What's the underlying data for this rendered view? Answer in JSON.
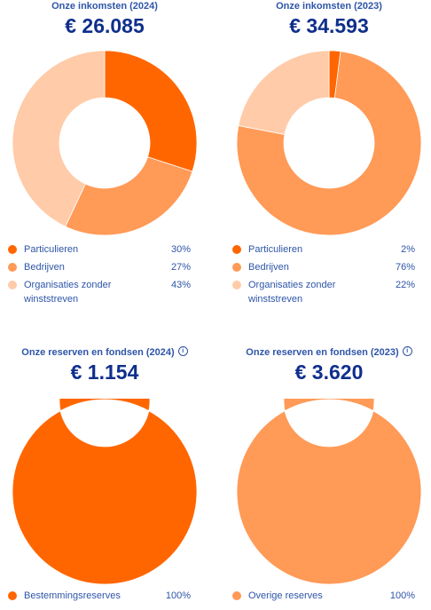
{
  "chart_data": [
    {
      "type": "pie",
      "title": "Onze inkomsten (2024)",
      "total": "€ 26.085",
      "categories": [
        "Particulieren",
        "Bedrijven",
        "Organisaties zonder winststreven"
      ],
      "values": [
        30,
        27,
        43
      ],
      "labels": [
        "30%",
        "27%",
        "43%"
      ],
      "colors": [
        "#ff6600",
        "#ff9a57",
        "#ffcba8"
      ],
      "legend": "bottom"
    },
    {
      "type": "pie",
      "title": "Onze inkomsten (2023)",
      "total": "€ 34.593",
      "categories": [
        "Particulieren",
        "Bedrijven",
        "Organisaties zonder winststreven"
      ],
      "values": [
        2,
        76,
        22
      ],
      "labels": [
        "2%",
        "76%",
        "22%"
      ],
      "colors": [
        "#ff6600",
        "#ff9a57",
        "#ffcba8"
      ],
      "legend": "bottom"
    },
    {
      "type": "pie",
      "title": "Onze reserven en fondsen (2024)",
      "total": "€ 1.154",
      "categories": [
        "Bestemmingsreserves"
      ],
      "values": [
        100
      ],
      "labels": [
        "100%"
      ],
      "colors": [
        "#ff6600"
      ],
      "legend": "bottom"
    },
    {
      "type": "pie",
      "title": "Onze reserven en fondsen (2023)",
      "total": "€ 3.620",
      "categories": [
        "Overige reserves"
      ],
      "values": [
        100
      ],
      "labels": [
        "100%"
      ],
      "colors": [
        "#ff9a57"
      ],
      "legend": "bottom"
    }
  ],
  "info_icon": "info-icon",
  "info_glyph": "i"
}
